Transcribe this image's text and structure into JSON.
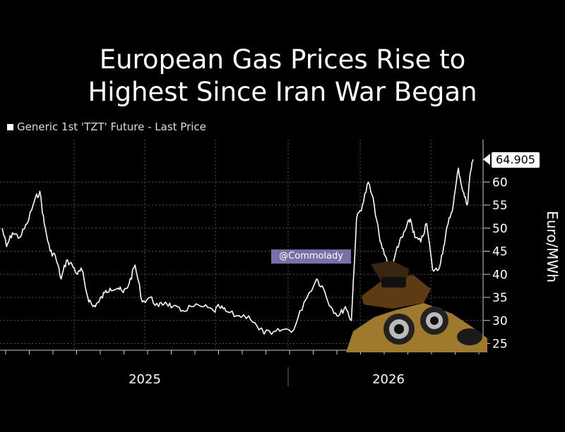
{
  "title_lines": [
    "European Gas Prices Rise to",
    "Highest Since Iran War Began"
  ],
  "legend_label": "Generic 1st 'TZT' Future - Last Price",
  "watermark": "@Commolady",
  "last_price_label": "64.905",
  "y_axis_title": "Euro/MWh",
  "chart_data": {
    "type": "line",
    "title": "European Gas Prices Rise to Highest Since Iran War Began",
    "ylabel": "Euro/MWh",
    "ylim": [
      22.5,
      67
    ],
    "yticks": [
      25,
      30,
      35,
      40,
      45,
      50,
      55,
      60
    ],
    "xticks": [
      "2025",
      "2026"
    ],
    "grid": true,
    "legend": "top-left",
    "series": [
      {
        "name": "Generic 1st 'TZT' Future - Last Price",
        "color": "#ffffff",
        "x": [
          "2024-09-01",
          "2024-09-07",
          "2024-09-15",
          "2024-09-25",
          "2024-10-05",
          "2024-10-15",
          "2024-10-22",
          "2024-10-28",
          "2024-11-05",
          "2024-11-12",
          "2024-11-20",
          "2024-11-27",
          "2024-12-05",
          "2024-12-12",
          "2024-12-18",
          "2024-12-26",
          "2025-01-02",
          "2025-01-10",
          "2025-01-18",
          "2025-01-25",
          "2025-02-05",
          "2025-02-12",
          "2025-02-20",
          "2025-02-28",
          "2025-03-10",
          "2025-03-20",
          "2025-04-01",
          "2025-04-10",
          "2025-04-20",
          "2025-05-01",
          "2025-05-15",
          "2025-06-01",
          "2025-06-15",
          "2025-06-22",
          "2025-07-01",
          "2025-07-15",
          "2025-08-01",
          "2025-08-15",
          "2025-09-01",
          "2025-09-15",
          "2025-10-01",
          "2025-10-15",
          "2025-11-01",
          "2025-11-10",
          "2025-11-20",
          "2025-12-01",
          "2025-12-10",
          "2025-12-18",
          "2025-12-25",
          "2026-01-02",
          "2026-01-10",
          "2026-01-18",
          "2026-01-26",
          "2026-02-02",
          "2026-02-10",
          "2026-02-18",
          "2026-02-25",
          "2026-03-02",
          "2026-03-08",
          "2026-03-14",
          "2026-03-22",
          "2026-03-30",
          "2026-04-07",
          "2026-04-15",
          "2026-04-22",
          "2026-04-28",
          "2026-05-05",
          "2026-05-12",
          "2026-05-18",
          "2026-05-24",
          "2026-05-28",
          "2026-06-01"
        ],
        "y": [
          50,
          46,
          49,
          48,
          51,
          56,
          58,
          51,
          45,
          44,
          39,
          43,
          42,
          40,
          41,
          35,
          33,
          34,
          36,
          37,
          37,
          36,
          38,
          42,
          34,
          35,
          33,
          34,
          33,
          32,
          33,
          33,
          32,
          33,
          32,
          31,
          31,
          28,
          27,
          28,
          28,
          34,
          39,
          37,
          33,
          31,
          33,
          30,
          52,
          55,
          60,
          55,
          47,
          44,
          40,
          46,
          48,
          50,
          52,
          48,
          47,
          51,
          41,
          41,
          46,
          51,
          55,
          63,
          58,
          55,
          62,
          64.905
        ]
      }
    ]
  }
}
